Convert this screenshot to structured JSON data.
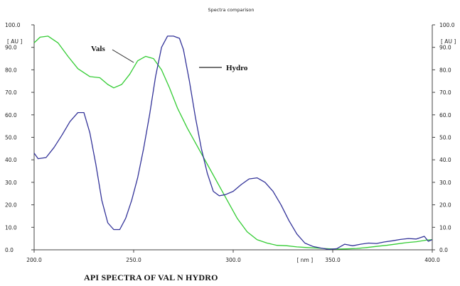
{
  "caption": "API SPECTRA OF VAL N HYDRO",
  "chart_data": {
    "type": "line",
    "title": "Spectra comparison",
    "xlabel": "[ nm ]",
    "ylabel_left": "[ AU ]",
    "ylabel_right": "[ AU ]",
    "xlim": [
      200,
      400
    ],
    "ylim": [
      0,
      100
    ],
    "x_ticks": [
      "200.0",
      "250.0",
      "300.0",
      "350.0",
      "400.0"
    ],
    "y_ticks": [
      "0.0",
      "10.0",
      "20.0",
      "30.0",
      "40.0",
      "50.0",
      "60.0",
      "70.0",
      "80.0",
      "90.0",
      "100.0"
    ],
    "grid": false,
    "legend": "annotations with leader lines",
    "series": [
      {
        "name": "Vals",
        "color": "#33cc33",
        "x": [
          200,
          203,
          207,
          212,
          217,
          222,
          228,
          233,
          237,
          240,
          244,
          248,
          252,
          256,
          260,
          264,
          268,
          272,
          277,
          282,
          287,
          292,
          297,
          302,
          307,
          312,
          317,
          322,
          327,
          332,
          337,
          342,
          347,
          352,
          357,
          362,
          367,
          372,
          377,
          382,
          387,
          392,
          397,
          400
        ],
        "y": [
          92,
          94.5,
          95,
          92,
          86,
          80.5,
          77,
          76.5,
          73.5,
          72,
          73.5,
          78,
          84,
          86,
          85,
          80,
          72,
          63,
          54,
          46,
          38,
          30,
          22,
          14,
          8,
          4.5,
          3,
          2,
          1.8,
          1.3,
          1,
          0.8,
          0.5,
          0.3,
          0.4,
          0.6,
          1,
          1.5,
          2,
          2.6,
          3.2,
          3.6,
          4.3,
          4.5
        ]
      },
      {
        "name": "Hydro",
        "color": "#333399",
        "x": [
          200,
          202,
          206,
          210,
          214,
          218,
          222,
          225,
          228,
          231,
          234,
          237,
          240,
          243,
          246,
          249,
          252,
          255,
          258,
          261,
          264,
          267,
          270,
          273,
          275,
          278,
          281,
          284,
          287,
          290,
          293,
          296,
          300,
          304,
          308,
          312,
          316,
          320,
          324,
          328,
          332,
          336,
          340,
          344,
          348,
          352,
          356,
          360,
          364,
          368,
          372,
          376,
          380,
          384,
          388,
          392,
          396,
          398,
          400
        ],
        "y": [
          43,
          40.5,
          41,
          45.5,
          51,
          57,
          61,
          61,
          52,
          38,
          22,
          12,
          9,
          9,
          14,
          22,
          32,
          45,
          60,
          77,
          90,
          95,
          95,
          94,
          89,
          75,
          59,
          45,
          34,
          26,
          24,
          24.5,
          26,
          29,
          31.5,
          32,
          30,
          26,
          20,
          13,
          7,
          3,
          1.5,
          0.8,
          0.2,
          0.5,
          2.5,
          1.8,
          2.5,
          3,
          2.8,
          3.5,
          4,
          4.6,
          5,
          4.8,
          6,
          3.8,
          4.5
        ]
      }
    ]
  }
}
